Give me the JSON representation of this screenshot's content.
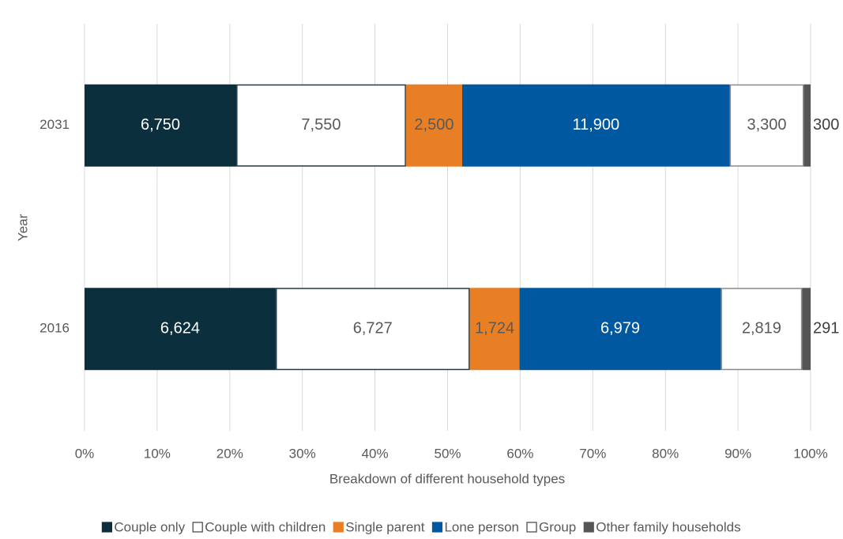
{
  "chart_data": {
    "type": "stacked-bar-100",
    "orientation": "horizontal",
    "xlabel": "Breakdown of different household types",
    "ylabel": "Year",
    "categories": [
      "2031",
      "2016"
    ],
    "series": [
      {
        "name": "Couple only",
        "color": "#0b2f3d",
        "border": "#0b2f3d",
        "label_color": "#ffffff",
        "values": [
          6750,
          6624
        ],
        "value_labels": [
          "6,750",
          "6,624"
        ]
      },
      {
        "name": "Couple with children",
        "color": "#ffffff",
        "border": "#1d3c48",
        "label_color": "#595959",
        "values": [
          7550,
          6727
        ],
        "value_labels": [
          "7,550",
          "6,727"
        ]
      },
      {
        "name": "Single parent",
        "color": "#e87f24",
        "border": "#e87f24",
        "label_color": "#595959",
        "values": [
          2500,
          1724
        ],
        "value_labels": [
          "2,500",
          "1,724"
        ]
      },
      {
        "name": "Lone person",
        "color": "#0058a0",
        "border": "#0058a0",
        "label_color": "#ffffff",
        "values": [
          11900,
          6979
        ],
        "value_labels": [
          "11,900",
          "6,979"
        ]
      },
      {
        "name": "Group",
        "color": "#ffffff",
        "border": "#8a8a8a",
        "label_color": "#595959",
        "values": [
          3300,
          2819
        ],
        "value_labels": [
          "3,300",
          "2,819"
        ]
      },
      {
        "name": "Other family households",
        "color": "#555555",
        "border": "#555555",
        "label_color": "#404040",
        "values": [
          300,
          291
        ]
      }
    ],
    "xlim": [
      0,
      100
    ],
    "xticks": [
      {
        "value": 0,
        "label": "0%"
      },
      {
        "value": 10,
        "label": "10%"
      },
      {
        "value": 20,
        "label": "20%"
      },
      {
        "value": 30,
        "label": "30%"
      },
      {
        "value": 40,
        "label": "40%"
      },
      {
        "value": 50,
        "label": "50%"
      },
      {
        "value": 60,
        "label": "60%"
      },
      {
        "value": 70,
        "label": "70%"
      },
      {
        "value": 80,
        "label": "80%"
      },
      {
        "value": 90,
        "label": "90%"
      },
      {
        "value": 100,
        "label": "100%"
      }
    ],
    "grid": true,
    "legend": "bottom"
  }
}
